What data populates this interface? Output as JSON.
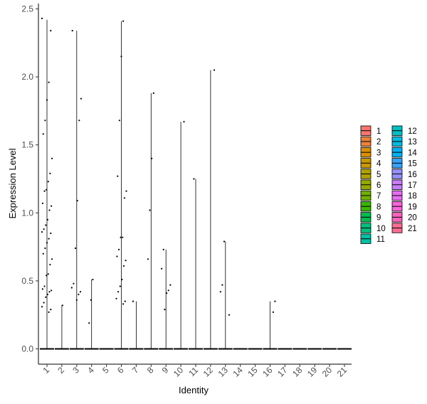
{
  "chart_data": {
    "type": "violin",
    "xlabel": "Identity",
    "ylabel": "Expression Level",
    "ylim": [
      0,
      2.5
    ],
    "yticks": [
      0.0,
      0.5,
      1.0,
      1.5,
      2.0,
      2.5
    ],
    "ytick_labels": [
      "0.0",
      "0.5",
      "1.0",
      "1.5",
      "2.0",
      "2.5"
    ],
    "categories": [
      "1",
      "2",
      "3",
      "4",
      "5",
      "6",
      "7",
      "8",
      "9",
      "10",
      "11",
      "12",
      "13",
      "14",
      "15",
      "16",
      "17",
      "18",
      "19",
      "20",
      "21"
    ],
    "colors": [
      "#F8766D",
      "#EC8239",
      "#DB8E00",
      "#C79800",
      "#AFA100",
      "#93AA00",
      "#6FB000",
      "#39B600",
      "#00BB4E",
      "#00BF7D",
      "#00C1A3",
      "#00BFC4",
      "#00BAE0",
      "#00B0F6",
      "#35A2FF",
      "#9590FF",
      "#C77CFF",
      "#E76BF3",
      "#FA62DB",
      "#FF62BC",
      "#FF6C91"
    ],
    "violin_max": [
      2.42,
      0.32,
      2.34,
      0.51,
      0.0,
      2.41,
      0.35,
      1.88,
      0.73,
      1.67,
      1.25,
      2.05,
      0.79,
      0.0,
      0.0,
      0.35,
      0.0,
      0.0,
      0.0,
      0.0,
      0.0
    ],
    "points": [
      {
        "category": "1",
        "values": [
          2.43,
          2.34,
          1.96,
          1.83,
          1.68,
          1.58,
          1.4,
          1.29,
          1.23,
          1.17,
          1.16,
          1.07,
          1.05,
          1.02,
          0.95,
          0.91,
          0.88,
          0.86,
          0.85,
          0.81,
          0.78,
          0.74,
          0.7,
          0.66,
          0.62,
          0.55,
          0.54,
          0.46,
          0.44,
          0.43,
          0.42,
          0.4,
          0.38,
          0.34,
          0.31,
          0.29,
          0.27
        ]
      },
      {
        "category": "2",
        "values": [
          0.32
        ]
      },
      {
        "category": "3",
        "values": [
          2.34,
          1.84,
          1.68,
          1.09,
          0.74,
          0.48,
          0.45,
          0.42,
          0.4,
          0.36
        ]
      },
      {
        "category": "4",
        "values": [
          0.51,
          0.36,
          0.19
        ]
      },
      {
        "category": "6",
        "values": [
          2.41,
          2.15,
          1.68,
          1.27,
          1.16,
          1.11,
          0.82,
          0.82,
          0.73,
          0.68,
          0.65,
          0.61,
          0.51,
          0.46,
          0.42,
          0.37,
          0.35,
          0.33
        ]
      },
      {
        "category": "7",
        "values": [
          0.35
        ]
      },
      {
        "category": "8",
        "values": [
          1.88,
          1.4,
          1.02,
          0.66
        ]
      },
      {
        "category": "9",
        "values": [
          0.73,
          0.59,
          0.47,
          0.43,
          0.41,
          0.29
        ]
      },
      {
        "category": "10",
        "values": [
          1.67
        ]
      },
      {
        "category": "11",
        "values": [
          1.25
        ]
      },
      {
        "category": "12",
        "values": [
          2.05
        ]
      },
      {
        "category": "13",
        "values": [
          0.79,
          0.47,
          0.42,
          0.25
        ]
      },
      {
        "category": "16",
        "values": [
          0.35,
          0.27
        ]
      }
    ],
    "legend_position": "right",
    "legend_columns": 2,
    "grid": false
  }
}
